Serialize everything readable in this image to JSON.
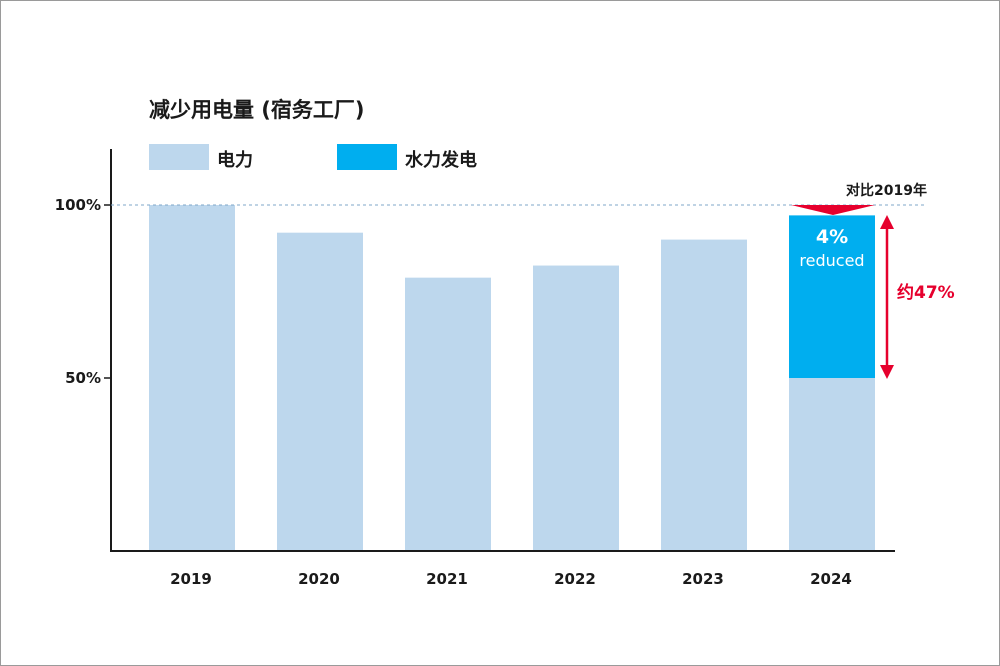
{
  "colors": {
    "electricity": "#bdd7ed",
    "hydro": "#00aeef",
    "accent_red": "#e6002d",
    "axis": "#1a1a1a",
    "reference_line": "#7fa7c9"
  },
  "chart_data": {
    "type": "bar",
    "title": "减少用电量 (宿务工厂)",
    "categories": [
      "2019",
      "2020",
      "2021",
      "2022",
      "2023",
      "2024"
    ],
    "series": [
      {
        "name": "电力",
        "values": [
          100,
          92,
          79,
          82.5,
          90,
          50
        ]
      },
      {
        "name": "水力发电",
        "values": [
          0,
          0,
          0,
          0,
          0,
          47
        ]
      }
    ],
    "ylim": [
      0,
      100
    ],
    "yticks": [
      {
        "value": 100,
        "label": "100%"
      },
      {
        "value": 50,
        "label": "50%"
      }
    ],
    "reference": {
      "value": 100,
      "label": "对比2019年"
    },
    "reduced_note": {
      "value": "4%",
      "text": "reduced"
    },
    "annotation": "约47%",
    "legend": "top-left",
    "grid": false
  }
}
